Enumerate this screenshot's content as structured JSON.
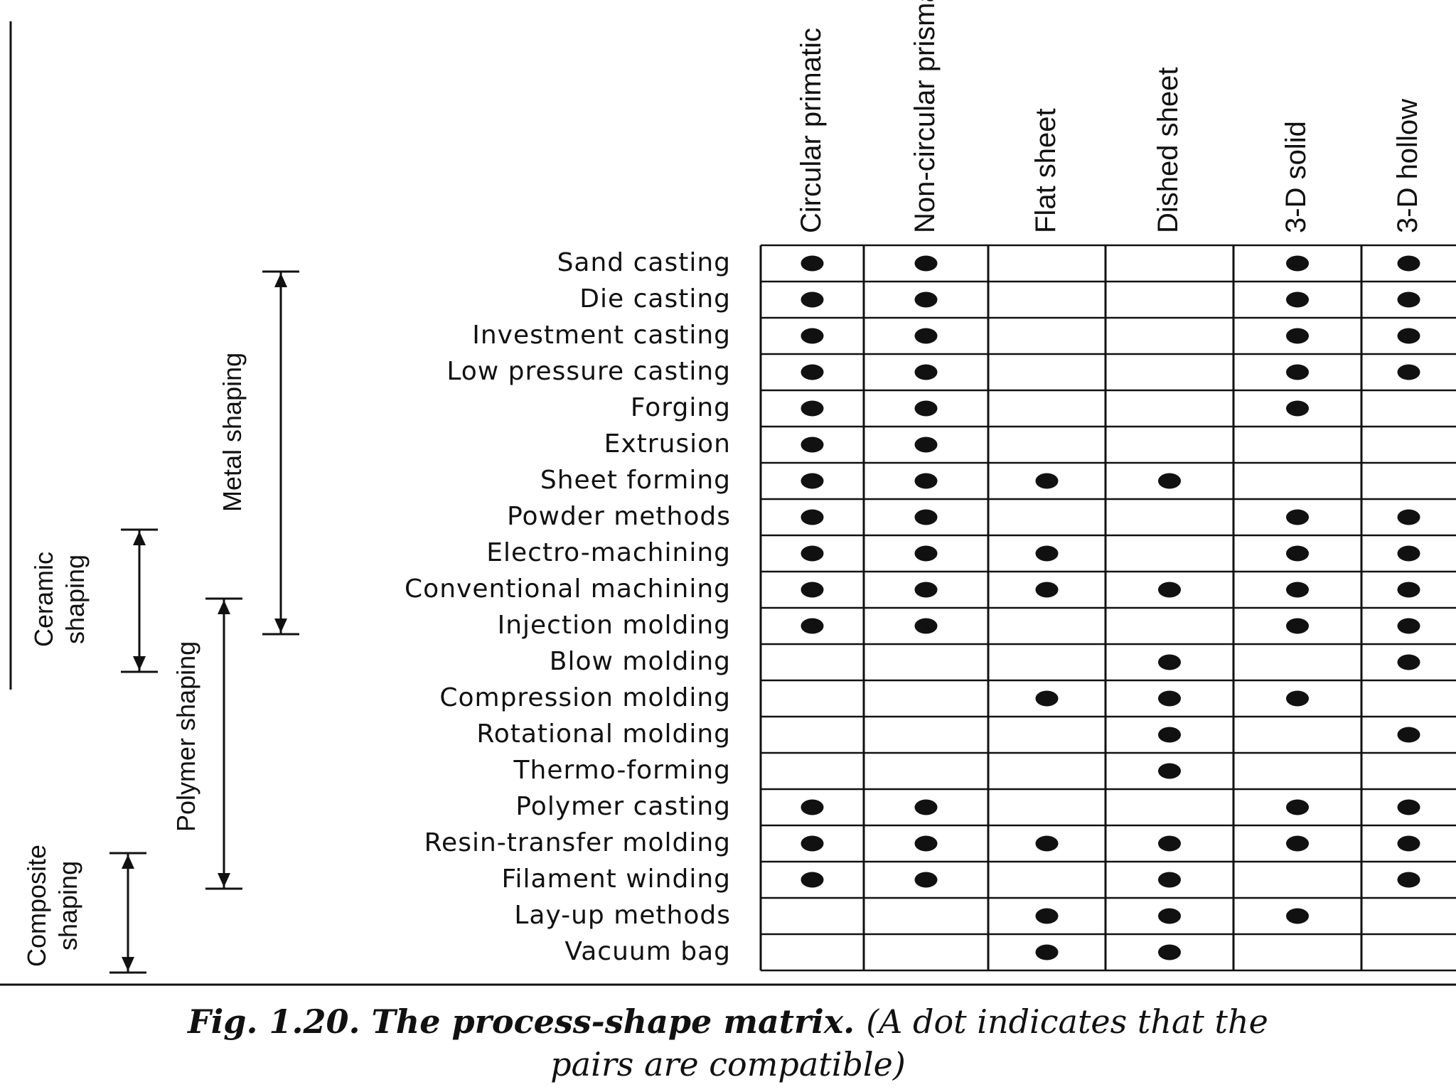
{
  "columns": [
    "Circular primatic",
    "Non-circular prismatic",
    "Flat sheet",
    "Dished sheet",
    "3-D solid",
    "3-D hollow"
  ],
  "rows": [
    {
      "label": "Sand casting",
      "dots": [
        1,
        1,
        0,
        0,
        1,
        1
      ]
    },
    {
      "label": "Die casting",
      "dots": [
        1,
        1,
        0,
        0,
        1,
        1
      ]
    },
    {
      "label": "Investment casting",
      "dots": [
        1,
        1,
        0,
        0,
        1,
        1
      ]
    },
    {
      "label": "Low pressure casting",
      "dots": [
        1,
        1,
        0,
        0,
        1,
        1
      ]
    },
    {
      "label": "Forging",
      "dots": [
        1,
        1,
        0,
        0,
        1,
        0
      ]
    },
    {
      "label": "Extrusion",
      "dots": [
        1,
        1,
        0,
        0,
        0,
        0
      ]
    },
    {
      "label": "Sheet forming",
      "dots": [
        1,
        1,
        1,
        1,
        0,
        0
      ]
    },
    {
      "label": "Powder methods",
      "dots": [
        1,
        1,
        0,
        0,
        1,
        1
      ]
    },
    {
      "label": "Electro-machining",
      "dots": [
        1,
        1,
        1,
        0,
        1,
        1
      ]
    },
    {
      "label": "Conventional machining",
      "dots": [
        1,
        1,
        1,
        1,
        1,
        1
      ]
    },
    {
      "label": "Injection molding",
      "dots": [
        1,
        1,
        0,
        0,
        1,
        1
      ]
    },
    {
      "label": "Blow molding",
      "dots": [
        0,
        0,
        0,
        1,
        0,
        1
      ]
    },
    {
      "label": "Compression molding",
      "dots": [
        0,
        0,
        1,
        1,
        1,
        0
      ]
    },
    {
      "label": "Rotational molding",
      "dots": [
        0,
        0,
        0,
        1,
        0,
        1
      ]
    },
    {
      "label": "Thermo-forming",
      "dots": [
        0,
        0,
        0,
        1,
        0,
        0
      ]
    },
    {
      "label": "Polymer casting",
      "dots": [
        1,
        1,
        0,
        0,
        1,
        1
      ]
    },
    {
      "label": "Resin-transfer molding",
      "dots": [
        1,
        1,
        1,
        1,
        1,
        1
      ]
    },
    {
      "label": "Filament winding",
      "dots": [
        1,
        1,
        0,
        1,
        0,
        1
      ]
    },
    {
      "label": "Lay-up methods",
      "dots": [
        0,
        0,
        1,
        1,
        1,
        0
      ]
    },
    {
      "label": "Vacuum bag",
      "dots": [
        0,
        0,
        1,
        1,
        0,
        0
      ]
    }
  ],
  "groups": {
    "metal": "Metal shaping",
    "ceramic_line1": "Ceramic",
    "ceramic_line2": "shaping",
    "polymer": "Polymer shaping",
    "composite_line1": "Composite",
    "composite_line2": "shaping"
  },
  "caption": {
    "fig": "Fig. 1.20. The process-shape matrix.",
    "note_part1": "(A dot indicates that the",
    "note_part2": "pairs are compatible)"
  },
  "colors": {
    "ink": "#111111",
    "paper": "#ffffff"
  }
}
